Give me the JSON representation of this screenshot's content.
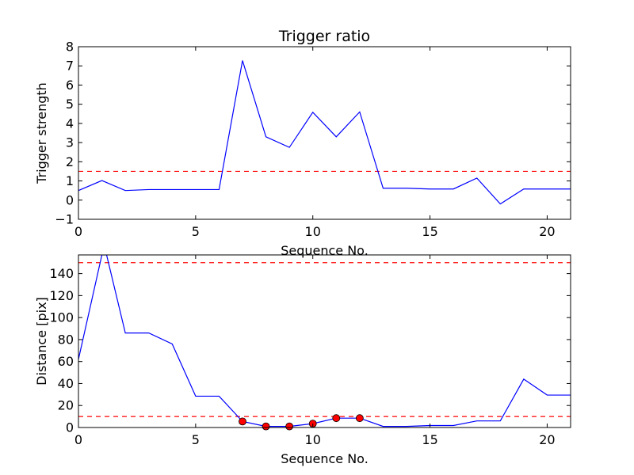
{
  "chart_data": [
    {
      "type": "line",
      "title": "Trigger ratio",
      "xlabel": "Sequence No.",
      "ylabel": "Trigger strength",
      "xlim": [
        0,
        21
      ],
      "ylim": [
        -1,
        8
      ],
      "xticks": [
        0,
        5,
        10,
        15,
        20
      ],
      "yticks": [
        -1,
        0,
        1,
        2,
        3,
        4,
        5,
        6,
        7,
        8
      ],
      "grid": false,
      "series": [
        {
          "color": "#0000ff",
          "x": [
            0,
            1,
            2,
            3,
            4,
            5,
            6,
            7,
            8,
            9,
            10,
            11,
            12,
            13,
            14,
            15,
            16,
            17,
            18,
            19,
            20,
            21
          ],
          "y": [
            0.5,
            1.02,
            0.5,
            0.55,
            0.55,
            0.55,
            0.55,
            7.28,
            3.3,
            2.75,
            4.58,
            3.3,
            4.6,
            0.62,
            0.62,
            0.58,
            0.58,
            1.15,
            -0.2,
            0.58,
            0.58,
            0.58
          ]
        }
      ],
      "hlines": [
        {
          "y": 1.5,
          "color": "#ff0000",
          "style": "dashed"
        }
      ]
    },
    {
      "type": "line",
      "title": "",
      "xlabel": "Sequence No.",
      "ylabel": "Distance [pix]",
      "xlim": [
        0,
        21
      ],
      "ylim": [
        0,
        157
      ],
      "xticks": [
        0,
        5,
        10,
        15,
        20
      ],
      "yticks": [
        0,
        20,
        40,
        60,
        80,
        100,
        120,
        140
      ],
      "grid": false,
      "series": [
        {
          "color": "#0000ff",
          "x": [
            0,
            1,
            1.2,
            2,
            3,
            4,
            5,
            6,
            7,
            8,
            9,
            10,
            11,
            12,
            13,
            14,
            15,
            16,
            17,
            18,
            19,
            20,
            21
          ],
          "y": [
            62,
            157,
            157,
            86,
            86,
            76,
            28.5,
            28.5,
            5.5,
            1,
            1,
            3.5,
            8.5,
            8.5,
            1,
            1,
            1.8,
            1.8,
            6,
            6,
            44,
            29.5,
            29.5
          ]
        },
        {
          "type": "scatter",
          "color": "#ff0000",
          "x": [
            7,
            8,
            9,
            10,
            11,
            12
          ],
          "y": [
            5.5,
            1,
            1,
            3.5,
            8.5,
            8.5
          ]
        }
      ],
      "hlines": [
        {
          "y": 150,
          "color": "#ff0000",
          "style": "dashed"
        },
        {
          "y": 10,
          "color": "#ff0000",
          "style": "dashed"
        }
      ]
    }
  ]
}
